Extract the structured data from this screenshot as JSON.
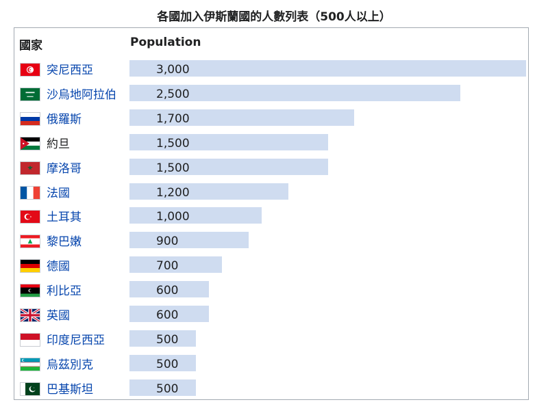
{
  "title": "各國加入伊斯蘭國的人數列表（500人以上）",
  "headers": {
    "country": "國家",
    "population": "Population"
  },
  "colors": {
    "link": "#0645ad",
    "bar": "#cfdcf0",
    "border": "#a2a9b1"
  },
  "chart_data": {
    "type": "bar",
    "orientation": "horizontal",
    "title": "各國加入伊斯蘭國的人數列表（500人以上）",
    "xlabel": "Population",
    "ylabel": "國家",
    "xlim": [
      0,
      3000
    ],
    "grid": false,
    "categories": [
      "突尼西亞",
      "沙烏地阿拉伯",
      "俄羅斯",
      "約旦",
      "摩洛哥",
      "法國",
      "土耳其",
      "黎巴嫩",
      "德國",
      "利比亞",
      "英國",
      "印度尼西亞",
      "烏茲別克",
      "巴基斯坦"
    ],
    "values": [
      3000,
      2500,
      1700,
      1500,
      1500,
      1200,
      1000,
      900,
      700,
      600,
      600,
      500,
      500,
      500
    ],
    "value_labels": [
      "3,000",
      "2,500",
      "1,700",
      "1,500",
      "1,500",
      "1,200",
      "1,000",
      "900",
      "700",
      "600",
      "600",
      "500",
      "500",
      "500"
    ],
    "flags": [
      "tunisia-flag",
      "saudi-arabia-flag",
      "russia-flag",
      "jordan-flag",
      "morocco-flag",
      "france-flag",
      "turkey-flag",
      "lebanon-flag",
      "germany-flag",
      "libya-flag",
      "uk-flag",
      "indonesia-flag",
      "uzbekistan-flag",
      "pakistan-flag"
    ],
    "linked": [
      true,
      true,
      true,
      false,
      true,
      true,
      true,
      true,
      true,
      true,
      true,
      true,
      true,
      true
    ]
  }
}
